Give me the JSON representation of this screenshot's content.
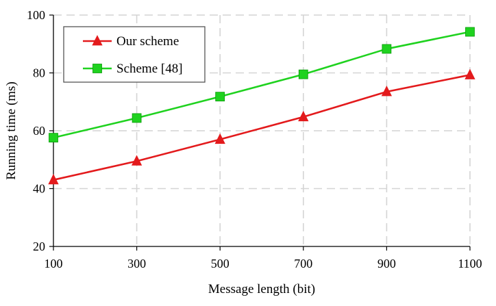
{
  "chart_data": {
    "type": "line",
    "title": "",
    "xlabel": "Message length (bit)",
    "ylabel": "Running time (ms)",
    "x": [
      100,
      300,
      500,
      700,
      900,
      1100
    ],
    "xlim": [
      100,
      1100
    ],
    "ylim": [
      20,
      100
    ],
    "x_ticks": [
      "100",
      "300",
      "500",
      "700",
      "900",
      "1100"
    ],
    "y_ticks": [
      "20",
      "40",
      "60",
      "80",
      "100"
    ],
    "grid": true,
    "legend_position": "top-left",
    "series": [
      {
        "name": "Our scheme",
        "values": [
          43,
          49.5,
          57,
          64.8,
          73.5,
          79.3
        ],
        "color": "#e31a1c",
        "marker": "triangle"
      },
      {
        "name": "Scheme [48]",
        "values": [
          57.6,
          64.4,
          71.8,
          79.5,
          88.3,
          94.2
        ],
        "color": "#1fd21f",
        "marker": "square"
      }
    ]
  }
}
